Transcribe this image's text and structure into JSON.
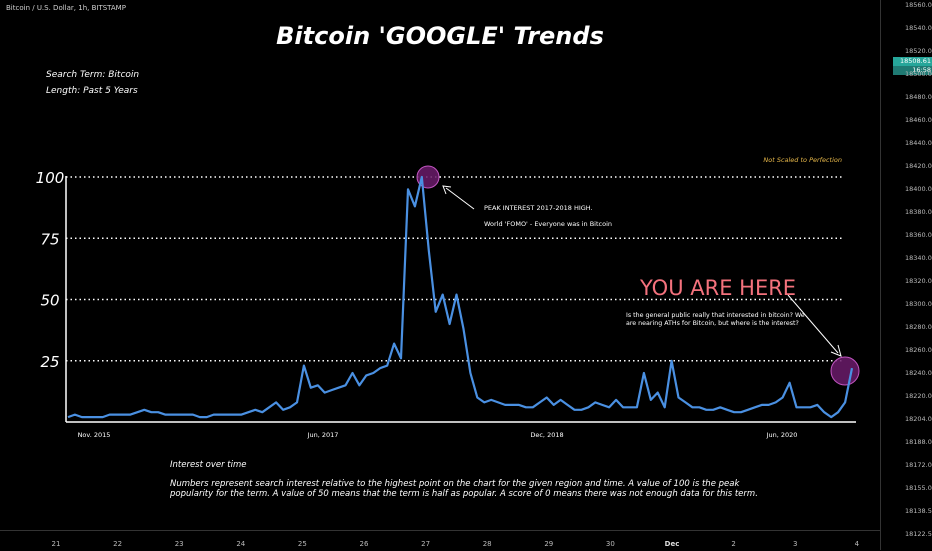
{
  "ticker": "Bitcoin / U.S. Dollar, 1h, BITSTAMP",
  "chart_data": {
    "type": "line",
    "title": "Bitcoin 'GOOGLE' Trends",
    "search_term": "Search Term: Bitcoin",
    "length": "Length: Past 5 Years",
    "note": "Not Scaled to Perfection",
    "ylim": [
      0,
      100
    ],
    "yticks": [
      100,
      75,
      50,
      25
    ],
    "x_labels": [
      "Nov. 2015",
      "Jun, 2017",
      "Dec, 2018",
      "Jun, 2020"
    ],
    "series": [
      {
        "color": "#4a90e2",
        "values": [
          2,
          3,
          2,
          2,
          2,
          2,
          3,
          3,
          3,
          3,
          4,
          5,
          4,
          4,
          3,
          3,
          3,
          3,
          3,
          2,
          2,
          3,
          3,
          3,
          3,
          3,
          4,
          5,
          4,
          6,
          8,
          5,
          6,
          8,
          23,
          14,
          15,
          12,
          13,
          14,
          15,
          20,
          15,
          19,
          20,
          22,
          23,
          32,
          26,
          95,
          88,
          100,
          70,
          45,
          52,
          40,
          52,
          38,
          20,
          10,
          8,
          9,
          8,
          7,
          7,
          7,
          6,
          6,
          8,
          10,
          7,
          9,
          7,
          5,
          5,
          6,
          8,
          7,
          6,
          9,
          6,
          6,
          6,
          20,
          9,
          12,
          6,
          25,
          10,
          8,
          6,
          6,
          5,
          5,
          6,
          5,
          4,
          4,
          5,
          6,
          7,
          7,
          8,
          10,
          16,
          6,
          6,
          6,
          7,
          4,
          2,
          4,
          8,
          22
        ],
        "line": "single"
      }
    ],
    "grid": "dotted horizontal at y ticks"
  },
  "annotations": {
    "peak_title": "PEAK INTEREST 2017-2018 HIGH.",
    "peak_sub": "World 'FOMO' - Everyone was in Bitcoin",
    "you_are_here": "YOU ARE HERE",
    "question": "Is the general public really that interested in bitcoin? We are nearing ATHs for Bitcoin, but where is the interest?",
    "interest_title": "Interest over time",
    "interest_desc": "Numbers represent search interest relative to the highest point on the chart for the given region and time. A value of 100 is the peak popularity for the term. A value of 50 means that the term is half as popular. A score of 0 means there was not enough data for this term."
  },
  "price_axis": {
    "labels": [
      "18560.00",
      "18540.00",
      "18520.00",
      "18500.00",
      "18480.00",
      "18460.00",
      "18440.00",
      "18420.00",
      "18400.00",
      "18380.00",
      "18360.00",
      "18340.00",
      "18320.00",
      "18300.00",
      "18280.00",
      "18260.00",
      "18240.00",
      "18220.00",
      "18204.00",
      "18188.00",
      "18172.00",
      "18155.00",
      "18138.50",
      "18122.50"
    ],
    "current_price": "18508.61",
    "countdown": "16:58",
    "tag_color_green": "#26a69a",
    "tag_color_teal": "#1f7a73"
  },
  "time_axis": {
    "labels": [
      "21",
      "22",
      "23",
      "24",
      "25",
      "26",
      "27",
      "28",
      "29",
      "30",
      "Dec",
      "2",
      "3",
      "4"
    ]
  },
  "colors": {
    "circle_fill": "#6a1b6a",
    "circle_stroke": "#c155c1",
    "you_are_here": "#f4727d",
    "note": "#e7b84a"
  }
}
